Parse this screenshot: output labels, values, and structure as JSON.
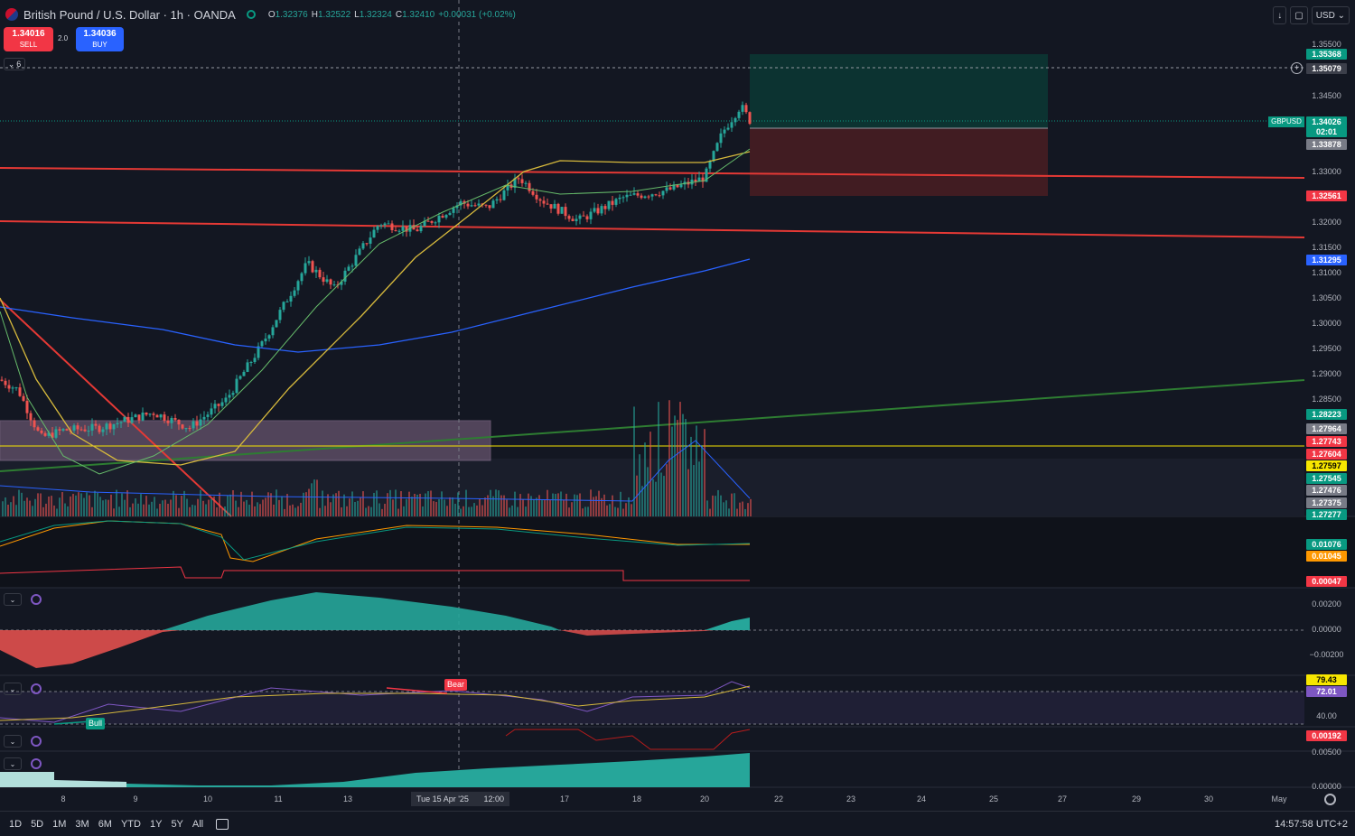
{
  "header": {
    "title": "British Pound / U.S. Dollar · 1h · OANDA",
    "ohlc": [
      {
        "k": "O",
        "v": "1.32376"
      },
      {
        "k": "H",
        "v": "1.32522"
      },
      {
        "k": "L",
        "v": "1.32324"
      },
      {
        "k": "C",
        "v": "1.32410"
      },
      {
        "k": "",
        "v": "+0.00031 (+0.02%)"
      }
    ]
  },
  "trade": {
    "sell_price": "1.34016",
    "sell_label": "SELL",
    "buy_price": "1.34036",
    "buy_label": "BUY",
    "spread": "2.0"
  },
  "collapse_count": "6",
  "top_right": {
    "currency": "USD"
  },
  "price_axis": {
    "ticks": [
      "1.35500",
      "1.34500",
      "1.33000",
      "1.32000",
      "1.31500",
      "1.31000",
      "1.30500",
      "1.30000",
      "1.29500",
      "1.29000",
      "1.28500"
    ],
    "labels": [
      {
        "text": "1.35368",
        "color": "#089981"
      },
      {
        "text": "1.35079",
        "color": "#3c3f4a"
      },
      {
        "text": "1.34026",
        "color": "#089981"
      },
      {
        "text": "02:01",
        "color": "#089981"
      },
      {
        "text": "1.33878",
        "color": "#787b86"
      },
      {
        "text": "1.32561",
        "color": "#f23645"
      },
      {
        "text": "1.31295",
        "color": "#2962ff"
      },
      {
        "text": "1.28223",
        "color": "#089981"
      },
      {
        "text": "1.27964",
        "color": "#787b86"
      },
      {
        "text": "1.27743",
        "color": "#f23645"
      },
      {
        "text": "1.27604",
        "color": "#f23645"
      },
      {
        "text": "1.27597",
        "color": "#f7e600"
      },
      {
        "text": "1.27545",
        "color": "#089981"
      },
      {
        "text": "1.27476",
        "color": "#787b86"
      },
      {
        "text": "1.27375",
        "color": "#787b86"
      },
      {
        "text": "1.27277",
        "color": "#089981"
      }
    ],
    "symbol_tag": "GBPUSD"
  },
  "indicator_axis": {
    "p1": [
      {
        "text": "0.01076",
        "color": "#089981"
      },
      {
        "text": "0.01045",
        "color": "#ff9800"
      },
      {
        "text": "0.00047",
        "color": "#f23645"
      }
    ],
    "p2_ticks": [
      "0.00200",
      "0.00000",
      "−0.00200"
    ],
    "p3_labels": [
      {
        "text": "79.43",
        "color": "#f7e600"
      },
      {
        "text": "72.01",
        "color": "#7e57c2"
      }
    ],
    "p3_tick": "40.00",
    "p4_label": {
      "text": "0.00192",
      "color": "#f23645"
    },
    "p5_ticks": [
      "0.00500",
      "0.00000"
    ]
  },
  "markers": {
    "bear": "Bear",
    "bull": "Bull"
  },
  "time_axis": {
    "ticks": [
      "8",
      "9",
      "10",
      "11",
      "13",
      "17",
      "18",
      "20",
      "22",
      "23",
      "24",
      "25",
      "27",
      "29",
      "30",
      "May"
    ],
    "crosshair": "Tue 15 Apr '25",
    "crosshair_time": "12:00"
  },
  "bottom": {
    "ranges": [
      "1D",
      "5D",
      "1M",
      "3M",
      "6M",
      "YTD",
      "1Y",
      "5Y",
      "All"
    ],
    "clock": "14:57:58 UTC+2"
  },
  "colors": {
    "up": "#26a69a",
    "down": "#ef5350",
    "bg": "#131722"
  }
}
